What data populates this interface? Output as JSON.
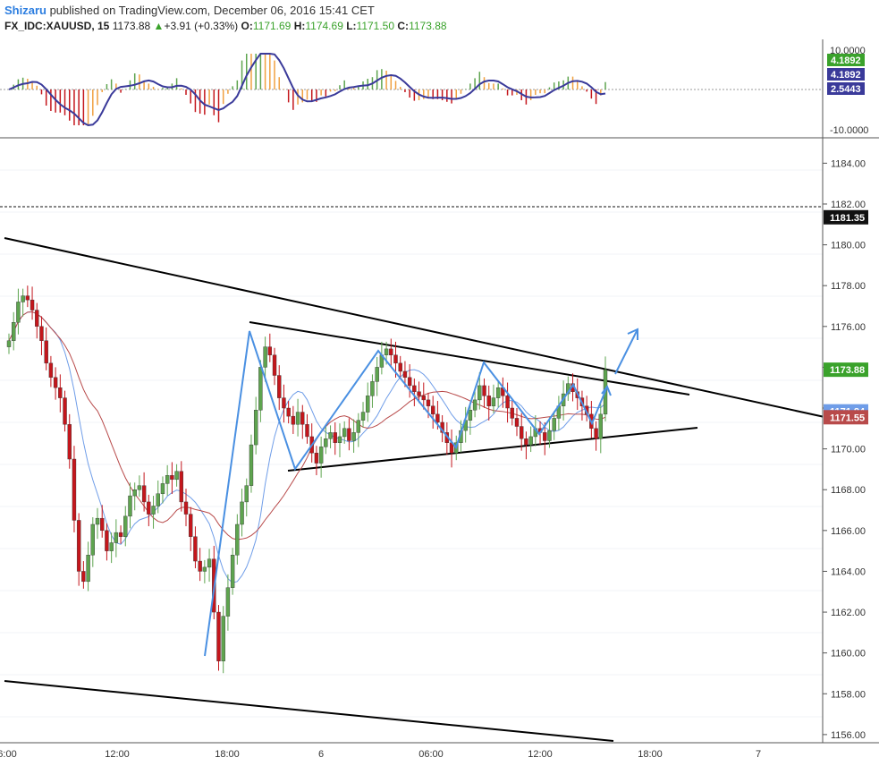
{
  "header": {
    "author": "Shizaru",
    "published_text": " published on TradingView.com, December 06, 2016 15:41 CET",
    "symbol": "FX_IDC:XAUUSD, 15",
    "last": "1173.88",
    "change": "+3.91 (+0.33%)",
    "open_label": "O:",
    "open": "1171.69",
    "high_label": "H:",
    "high": "1174.69",
    "low_label": "L:",
    "low": "1171.50",
    "close_label": "C:",
    "close": "1173.88"
  },
  "indicator": {
    "ticks": [
      "10.0000",
      "-10.0000"
    ],
    "tags": [
      {
        "text": "4.1892",
        "color": "#3aa22b"
      },
      {
        "text": "4.1892",
        "color": "#3a3a9a"
      },
      {
        "text": "2.5443",
        "color": "#3a3a9a"
      }
    ]
  },
  "price_axis": {
    "ticks": [
      "1184.00",
      "1182.00",
      "1180.00",
      "1178.00",
      "1176.00",
      "1174.00",
      "1172.00",
      "1170.00",
      "1168.00",
      "1166.00",
      "1164.00",
      "1162.00",
      "1160.00",
      "1158.00",
      "1156.00"
    ],
    "tags": [
      {
        "text": "1181.35",
        "color": "#111111"
      },
      {
        "text": "1173.88",
        "color": "#3aa22b"
      },
      {
        "text": "1171.84",
        "color": "#6f9de8"
      },
      {
        "text": "1171.55",
        "color": "#b84a4a"
      }
    ]
  },
  "time_axis": [
    "6:00",
    "12:00",
    "18:00",
    "6",
    "06:00",
    "12:00",
    "18:00",
    "7"
  ],
  "colors": {
    "up": "#5ea44f",
    "down": "#c4161c",
    "arrow": "#4a90e2",
    "ma_fast": "#6f9de8",
    "ma_slow": "#b84a4a",
    "osc_line": "#3a3a9a"
  },
  "chart_data": {
    "type": "candlestick",
    "symbol": "FX_IDC:XAUUSD",
    "interval": "15",
    "ylim": [
      1155.6,
      1185.2
    ],
    "indicator_ylim": [
      -10,
      10
    ],
    "horizontal_level": 1181.35,
    "x_labels": [
      "6:00",
      "12:00",
      "18:00",
      "6",
      "06:00",
      "12:00",
      "18:00",
      "7"
    ],
    "series": [
      {
        "name": "price",
        "close": [
          1175.3,
          1176.2,
          1177.2,
          1177.5,
          1177.3,
          1176.8,
          1176.0,
          1175.3,
          1174.2,
          1173.5,
          1173.0,
          1172.5,
          1171.2,
          1169.5,
          1166.5,
          1164.0,
          1163.5,
          1164.8,
          1166.3,
          1166.6,
          1166.0,
          1165.0,
          1165.4,
          1165.9,
          1165.7,
          1166.7,
          1167.7,
          1168.0,
          1168.2,
          1167.4,
          1166.8,
          1167.2,
          1167.8,
          1168.3,
          1168.7,
          1168.5,
          1168.9,
          1167.4,
          1166.8,
          1165.7,
          1164.5,
          1164.0,
          1164.2,
          1164.6,
          1162.0,
          1159.6,
          1161.8,
          1163.2,
          1164.8,
          1166.3,
          1167.4,
          1168.2,
          1170.2,
          1171.9,
          1174.0,
          1175.0,
          1174.6,
          1173.6,
          1172.5,
          1172.0,
          1171.6,
          1171.2,
          1171.8,
          1171.2,
          1170.6,
          1169.8,
          1169.3,
          1170.1,
          1170.5,
          1170.8,
          1170.3,
          1170.6,
          1171.0,
          1170.4,
          1170.8,
          1171.4,
          1171.8,
          1172.6,
          1173.3,
          1174.0,
          1174.6,
          1174.9,
          1174.6,
          1174.2,
          1173.8,
          1173.5,
          1173.1,
          1172.8,
          1172.6,
          1172.4,
          1172.1,
          1171.7,
          1171.3,
          1170.8,
          1170.3,
          1169.8,
          1170.3,
          1170.9,
          1171.4,
          1171.9,
          1172.4,
          1173.1,
          1172.6,
          1172.1,
          1172.5,
          1173.0,
          1172.6,
          1172.0,
          1171.5,
          1171.1,
          1170.5,
          1170.2,
          1170.6,
          1171.0,
          1170.8,
          1170.4,
          1170.9,
          1171.5,
          1172.1,
          1172.7,
          1173.2,
          1172.8,
          1172.5,
          1172.1,
          1171.7,
          1171.0,
          1170.5,
          1171.7,
          1173.88
        ]
      },
      {
        "name": "MA fast",
        "last": 1171.84
      },
      {
        "name": "MA slow",
        "last": 1171.55
      }
    ]
  }
}
